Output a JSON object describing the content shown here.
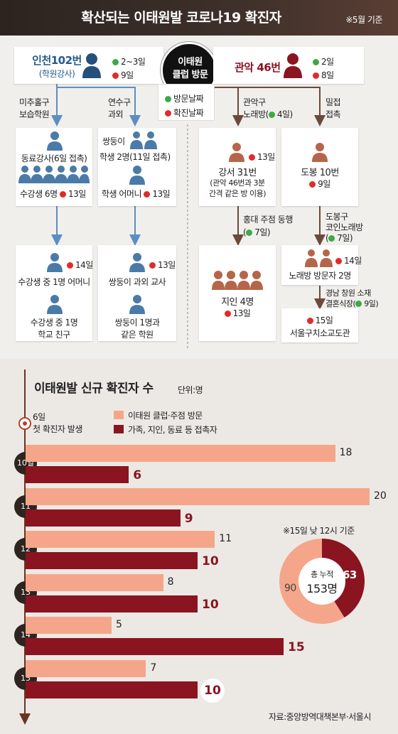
{
  "header": {
    "title": "확산되는 이태원발 코로나19 확진자",
    "note": "※5월 기준"
  },
  "center": {
    "line1": "이태원",
    "line2": "클럽 방문"
  },
  "legend": {
    "visit": "방문날짜",
    "confirm": "확진날짜"
  },
  "incheon": {
    "name": "인천102번",
    "sub": "(학원강사)",
    "visit": "2~3일",
    "confirm": "9일"
  },
  "gwanak": {
    "name": "관악 46번",
    "visit": "2일",
    "confirm": "8일"
  },
  "left": {
    "lbl1": [
      "미추홀구",
      "보습학원"
    ],
    "lbl2": [
      "연수구",
      "과외"
    ],
    "b1": {
      "line1": "동료강사(6일 접촉)",
      "line2": "수강생 6명",
      "date": "13일"
    },
    "b2": {
      "line1": "쌍둥이",
      "line2": "학생 2명(11일 접촉)",
      "line3": "학생 어머니",
      "date": "13일"
    },
    "b3": {
      "date": "14일",
      "line1": "수강생 중 1명 어머니",
      "line2": "수강생 중 1명",
      "line3": "학교 친구"
    },
    "b4": {
      "date": "13일",
      "line1": "쌍둥이 과외 교사",
      "line2": "쌍둥이 1명과",
      "line3": "같은 학원"
    }
  },
  "right": {
    "lbl1": {
      "l1": "관악구",
      "l2": "노래방(",
      "date": "4일",
      ")": ")"
    },
    "lbl2": [
      "밀접",
      "접촉"
    ],
    "b1": {
      "date": "13일",
      "line1": "강서 31번",
      "line2": "(관악 46번과 3분",
      "line3": "간격 같은 방 이용)"
    },
    "b2": {
      "line1": "도봉 10번",
      "date": "9일"
    },
    "lbl3": {
      "l1": "홍대 주점 동행",
      "date": "7일"
    },
    "lbl4": {
      "l1": "도봉구",
      "l2": "코인노래방",
      "date": "7일"
    },
    "b3": {
      "line1": "지인 4명",
      "date": "13일"
    },
    "b4": {
      "date": "14일",
      "line1": "노래방 방문자 2명"
    },
    "lbl5": {
      "l1": "경남 창원 소재",
      "l2": "결혼식장(",
      "date": "9일"
    },
    "b5": {
      "date": "15일",
      "line1": "서울구치소교도관"
    }
  },
  "chart_title": "이태원발 신규 확진자 수",
  "chart_unit": "단위:명",
  "first_case": {
    "day": "6일",
    "text": "첫 확진자 발생"
  },
  "chart_data": {
    "type": "bar",
    "categories": [
      "10일",
      "11",
      "12",
      "13",
      "14",
      "15"
    ],
    "series": [
      {
        "name": "이태원 클럽·주점 방문",
        "values": [
          18,
          20,
          11,
          8,
          5,
          7
        ],
        "color": "#f5a68a"
      },
      {
        "name": "가족, 지인, 동료 등 접촉자",
        "values": [
          6,
          9,
          10,
          10,
          15,
          10
        ],
        "color": "#8a1420"
      }
    ],
    "xlim": [
      0,
      20
    ]
  },
  "donut": {
    "note": "※15일 낮 12시 기준",
    "label": "총 누적",
    "total": "153명",
    "a": 90,
    "b": 63
  },
  "source": "자료:중앙방역대책본부·서울시"
}
